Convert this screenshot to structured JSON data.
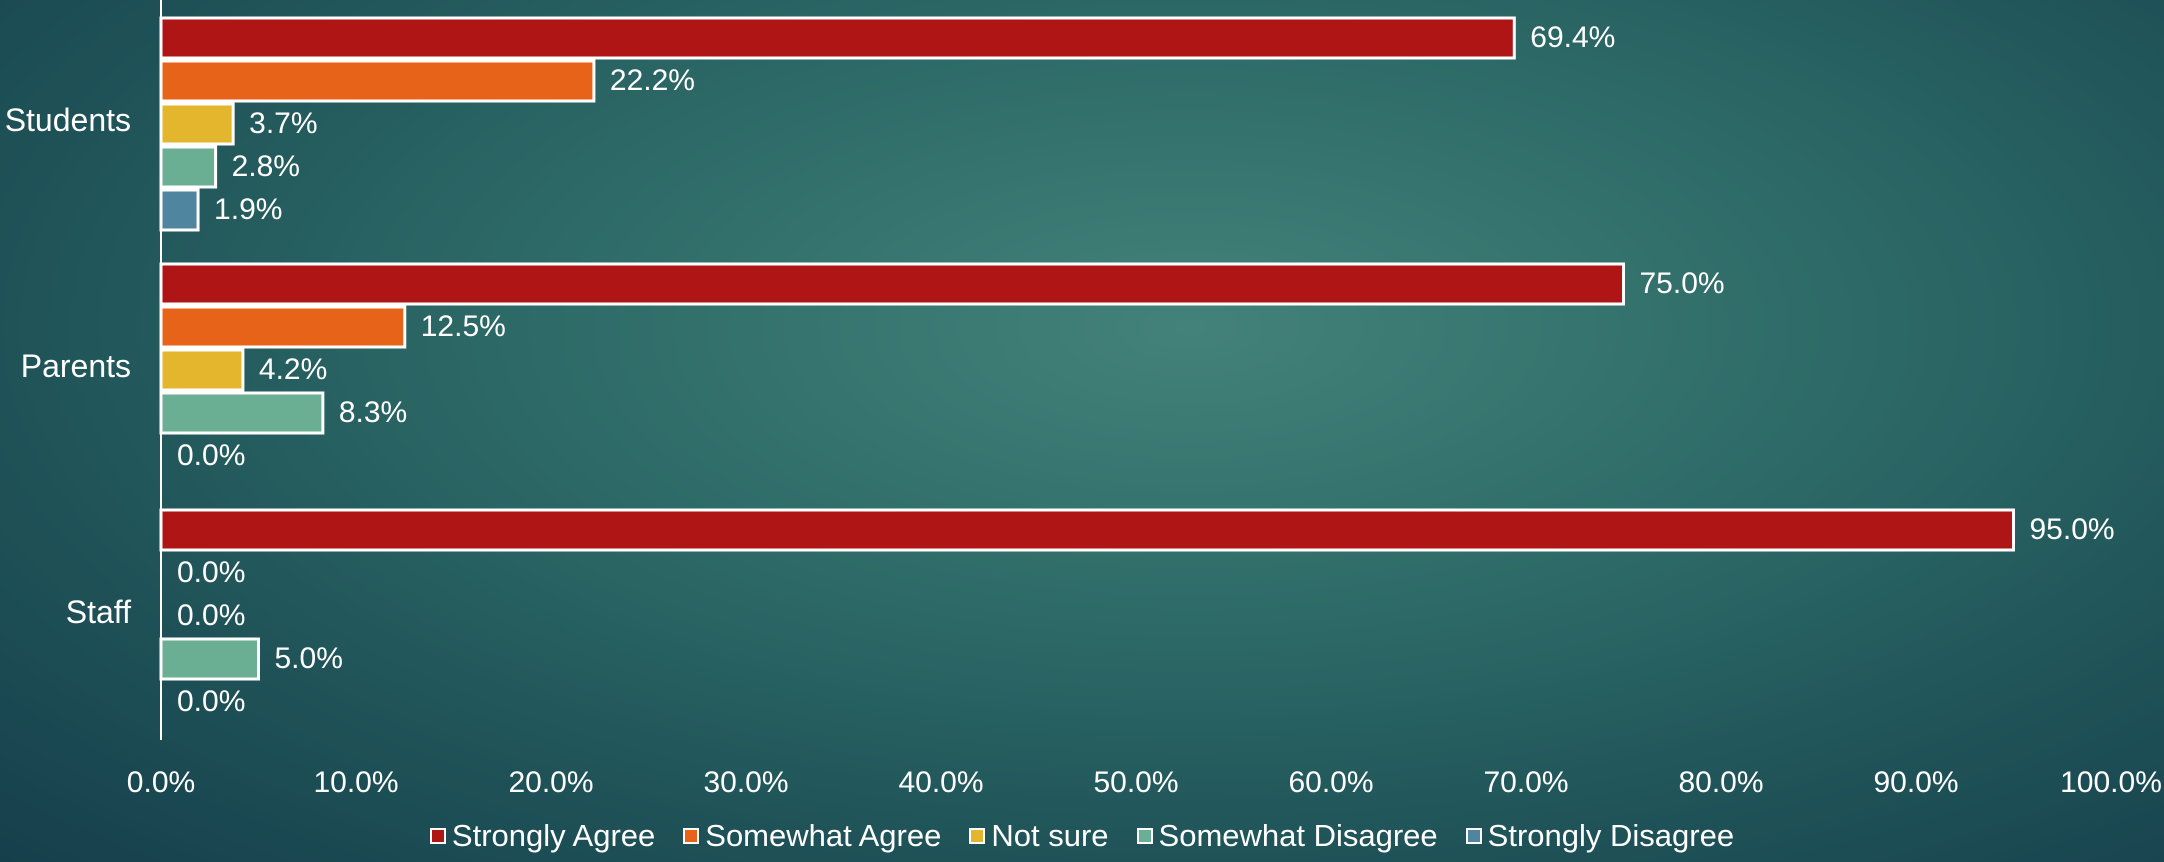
{
  "chart_data": {
    "type": "bar",
    "orientation": "horizontal",
    "categories": [
      "Students",
      "Parents",
      "Staff"
    ],
    "series": [
      {
        "name": "Strongly Agree",
        "color": "#b01515",
        "values": [
          69.4,
          75.0,
          95.0
        ],
        "labels": [
          "69.4%",
          "75.0%",
          "95.0%"
        ]
      },
      {
        "name": "Somewhat Agree",
        "color": "#e8631a",
        "values": [
          22.2,
          12.5,
          0.0
        ],
        "labels": [
          "22.2%",
          "12.5%",
          "0.0%"
        ]
      },
      {
        "name": "Not sure",
        "color": "#e3b62e",
        "values": [
          3.7,
          4.2,
          0.0
        ],
        "labels": [
          "3.7%",
          "4.2%",
          "0.0%"
        ]
      },
      {
        "name": "Somewhat Disagree",
        "color": "#6aae94",
        "values": [
          2.8,
          8.3,
          5.0
        ],
        "labels": [
          "2.8%",
          "8.3%",
          "5.0%"
        ]
      },
      {
        "name": "Strongly Disagree",
        "color": "#50859f",
        "values": [
          1.9,
          0.0,
          0.0
        ],
        "labels": [
          "1.9%",
          "0.0%",
          "0.0%"
        ]
      }
    ],
    "xlim": [
      0,
      100
    ],
    "x_ticks": [
      "0.0%",
      "10.0%",
      "20.0%",
      "30.0%",
      "40.0%",
      "50.0%",
      "60.0%",
      "70.0%",
      "80.0%",
      "90.0%",
      "100.0%"
    ],
    "grid": false,
    "legend_position": "bottom"
  }
}
